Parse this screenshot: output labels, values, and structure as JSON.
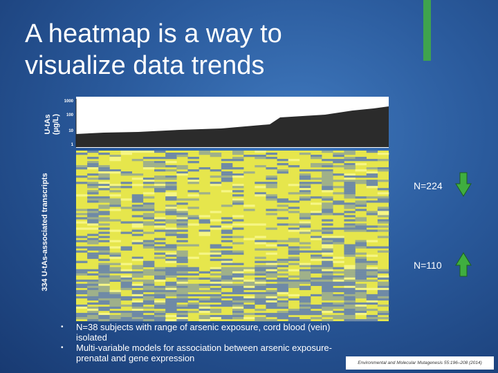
{
  "slide": {
    "title": "A heatmap is a way to visualize data trends",
    "exposure_chart": {
      "y_label": [
        "U-tAs",
        "(µg/L)"
      ],
      "ticks": [
        "1000",
        "100",
        "10",
        "1"
      ]
    },
    "heatmap": {
      "y_label": "334 U-tAs-associated transcripts"
    },
    "annotations": [
      "N=224",
      "N=110"
    ],
    "bullets": [
      "N=38 subjects with range of arsenic exposure, cord blood (vein) isolated",
      "Multi-variable models for association between arsenic exposure-prenatal and gene expression"
    ],
    "citation": "Environmental and Molecular Mutagenesis 55:196–208 (2014)"
  }
}
